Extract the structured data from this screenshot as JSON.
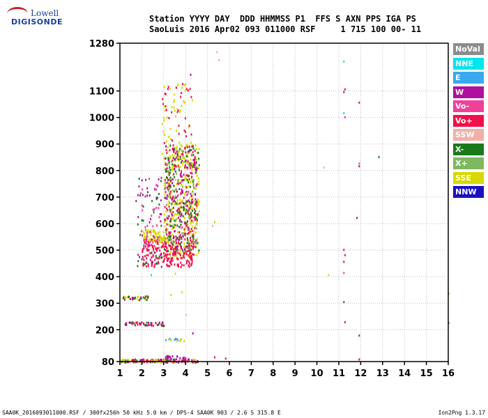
{
  "logo": {
    "line1": "Lowell",
    "line2": "DIGISONDE"
  },
  "header": {
    "line1": "Station YYYY DAY  DDD HHMMSS P1  FFS S AXN PPS IGA PS",
    "line2": "SaoLuis 2016 Apr02 093 011000 RSF     1 715 100 00- 11"
  },
  "footer": {
    "left": "SAA0K_2016093011000.RSF / 300fx256h 50 kHz 5.0 km / DPS-4 SAA0K 903 / 2.6 S 315.8 E",
    "right": "Ion2Png 1.3.17"
  },
  "legend": [
    {
      "label": "NoVal",
      "color": "#8c8c8c"
    },
    {
      "label": "NNE",
      "color": "#00e5ee"
    },
    {
      "label": "E",
      "color": "#3aa8f0"
    },
    {
      "label": "W",
      "color": "#b0109e"
    },
    {
      "label": "Vo-",
      "color": "#f0409a"
    },
    {
      "label": "Vo+",
      "color": "#f0104a"
    },
    {
      "label": "SSW",
      "color": "#f0b0a8"
    },
    {
      "label": "X-",
      "color": "#1a7a1a"
    },
    {
      "label": "X+",
      "color": "#80b860"
    },
    {
      "label": "SSE",
      "color": "#d8d800"
    },
    {
      "label": "NNW",
      "color": "#1a10c0"
    }
  ],
  "chart_data": {
    "type": "scatter",
    "xlim": [
      1,
      16
    ],
    "ylim": [
      80,
      1280
    ],
    "x_ticks": [
      "1",
      "2",
      "3",
      "4",
      "5",
      "6",
      "7",
      "8",
      "9",
      "10",
      "11",
      "12",
      "13",
      "14",
      "15",
      "16"
    ],
    "y_ticks": [
      "80",
      "200",
      "300",
      "400",
      "500",
      "600",
      "700",
      "800",
      "900",
      "1000",
      "1100",
      "1280"
    ],
    "grid": true,
    "clusters": [
      {
        "x": [
          3.0,
          4.6
        ],
        "y": [
          480,
          900
        ],
        "color": "#d8d800",
        "count": 300
      },
      {
        "x": [
          2.0,
          4.4
        ],
        "y": [
          440,
          560
        ],
        "color": "#f0104a",
        "count": 260
      },
      {
        "x": [
          3.0,
          4.5
        ],
        "y": [
          560,
          900
        ],
        "color": "#f0104a",
        "count": 160
      },
      {
        "x": [
          3.0,
          4.6
        ],
        "y": [
          500,
          900
        ],
        "color": "#1a7a1a",
        "count": 120
      },
      {
        "x": [
          3.0,
          4.5
        ],
        "y": [
          500,
          900
        ],
        "color": "#b0109e",
        "count": 110
      },
      {
        "x": [
          3.0,
          4.5
        ],
        "y": [
          500,
          880
        ],
        "color": "#80b860",
        "count": 80
      },
      {
        "x": [
          2.9,
          4.3
        ],
        "y": [
          850,
          1130
        ],
        "color": "#d8d800",
        "count": 50
      },
      {
        "x": [
          2.9,
          4.3
        ],
        "y": [
          850,
          1130
        ],
        "color": "#f0104a",
        "count": 35
      },
      {
        "x": [
          1.7,
          2.9
        ],
        "y": [
          440,
          780
        ],
        "color": "#1a7a1a",
        "count": 35
      },
      {
        "x": [
          1.7,
          2.9
        ],
        "y": [
          440,
          780
        ],
        "color": "#b0109e",
        "count": 35
      },
      {
        "x": [
          2.0,
          3.0
        ],
        "y": [
          530,
          580
        ],
        "color": "#d8d800",
        "count": 60
      },
      {
        "x": [
          1.9,
          2.8
        ],
        "y": [
          450,
          780
        ],
        "color": "#f0409a",
        "count": 35
      },
      {
        "x": [
          1.1,
          2.3
        ],
        "y": [
          315,
          330
        ],
        "color": "#d8d800",
        "count": 18
      },
      {
        "x": [
          1.1,
          2.3
        ],
        "y": [
          315,
          330
        ],
        "color": "#b0109e",
        "count": 14
      },
      {
        "x": [
          1.1,
          2.3
        ],
        "y": [
          315,
          330
        ],
        "color": "#1a7a1a",
        "count": 10
      },
      {
        "x": [
          1.2,
          3.0
        ],
        "y": [
          218,
          232
        ],
        "color": "#f0104a",
        "count": 24
      },
      {
        "x": [
          1.2,
          3.0
        ],
        "y": [
          218,
          232
        ],
        "color": "#b0109e",
        "count": 18
      },
      {
        "x": [
          1.2,
          3.0
        ],
        "y": [
          218,
          232
        ],
        "color": "#1a7a1a",
        "count": 12
      },
      {
        "x": [
          3.0,
          3.9
        ],
        "y": [
          160,
          170
        ],
        "color": "#3aa8f0",
        "count": 10
      },
      {
        "x": [
          3.0,
          3.9
        ],
        "y": [
          160,
          170
        ],
        "color": "#d8d800",
        "count": 8
      },
      {
        "x": [
          1.0,
          4.6
        ],
        "y": [
          80,
          92
        ],
        "color": "#1a7a1a",
        "count": 50
      },
      {
        "x": [
          1.0,
          4.6
        ],
        "y": [
          80,
          92
        ],
        "color": "#f0104a",
        "count": 50
      },
      {
        "x": [
          1.0,
          4.6
        ],
        "y": [
          80,
          92
        ],
        "color": "#d8d800",
        "count": 40
      },
      {
        "x": [
          1.0,
          4.6
        ],
        "y": [
          80,
          92
        ],
        "color": "#b0109e",
        "count": 30
      },
      {
        "x": [
          3.0,
          4.0
        ],
        "y": [
          92,
          105
        ],
        "color": "#b0109e",
        "count": 20
      }
    ],
    "points": [
      {
        "x": 11.2,
        "y": 1215,
        "color": "#00e5ee"
      },
      {
        "x": 11.25,
        "y": 1110,
        "color": "#f0104a"
      },
      {
        "x": 11.2,
        "y": 1100,
        "color": "#b0109e"
      },
      {
        "x": 11.2,
        "y": 1020,
        "color": "#00e5ee"
      },
      {
        "x": 11.25,
        "y": 1005,
        "color": "#f0409a"
      },
      {
        "x": 11.9,
        "y": 1060,
        "color": "#b0109e"
      },
      {
        "x": 12.8,
        "y": 855,
        "color": "#1a7a1a"
      },
      {
        "x": 11.9,
        "y": 830,
        "color": "#f0409a"
      },
      {
        "x": 11.9,
        "y": 820,
        "color": "#b0109e"
      },
      {
        "x": 10.3,
        "y": 815,
        "color": "#f0b0a8"
      },
      {
        "x": 11.8,
        "y": 625,
        "color": "#b0109e"
      },
      {
        "x": 11.2,
        "y": 505,
        "color": "#f0104a"
      },
      {
        "x": 11.25,
        "y": 485,
        "color": "#f0104a"
      },
      {
        "x": 11.2,
        "y": 460,
        "color": "#b0109e"
      },
      {
        "x": 11.2,
        "y": 418,
        "color": "#f0409a"
      },
      {
        "x": 10.5,
        "y": 410,
        "color": "#d8d800"
      },
      {
        "x": 11.2,
        "y": 308,
        "color": "#1a7a1a"
      },
      {
        "x": 11.25,
        "y": 232,
        "color": "#f0104a"
      },
      {
        "x": 11.9,
        "y": 182,
        "color": "#b0109e"
      },
      {
        "x": 11.9,
        "y": 92,
        "color": "#b0109e"
      },
      {
        "x": 16.0,
        "y": 340,
        "color": "#d8d800"
      },
      {
        "x": 16.0,
        "y": 230,
        "color": "#80b860"
      },
      {
        "x": 5.4,
        "y": 1250,
        "color": "#f0b0a8"
      },
      {
        "x": 5.5,
        "y": 1220,
        "color": "#f0b0a8"
      },
      {
        "x": 5.3,
        "y": 610,
        "color": "#d8d800"
      },
      {
        "x": 5.2,
        "y": 595,
        "color": "#f0b0a8"
      },
      {
        "x": 5.3,
        "y": 100,
        "color": "#f0104a"
      },
      {
        "x": 5.8,
        "y": 95,
        "color": "#b0109e"
      },
      {
        "x": 3.5,
        "y": 415,
        "color": "#d8d800"
      },
      {
        "x": 2.4,
        "y": 410,
        "color": "#00e5ee"
      },
      {
        "x": 3.8,
        "y": 345,
        "color": "#d8d800"
      },
      {
        "x": 3.3,
        "y": 335,
        "color": "#d8d800"
      },
      {
        "x": 4.0,
        "y": 260,
        "color": "#f0b0a8"
      },
      {
        "x": 4.3,
        "y": 190,
        "color": "#b0109e"
      },
      {
        "x": 4.2,
        "y": 1165,
        "color": "#b0109e"
      }
    ]
  }
}
